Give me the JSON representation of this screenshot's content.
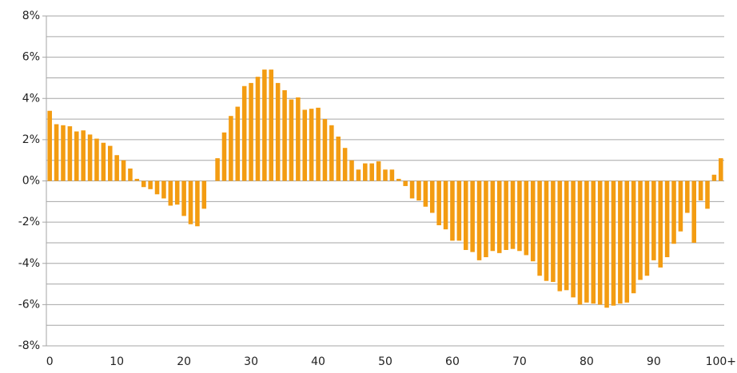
{
  "chart_data": {
    "type": "bar",
    "categories": [
      "0",
      null,
      null,
      null,
      null,
      null,
      null,
      null,
      null,
      null,
      "10",
      null,
      null,
      null,
      null,
      null,
      null,
      null,
      null,
      null,
      "20",
      null,
      null,
      null,
      null,
      null,
      null,
      null,
      null,
      null,
      "30",
      null,
      null,
      null,
      null,
      null,
      null,
      null,
      null,
      null,
      "40",
      null,
      null,
      null,
      null,
      null,
      null,
      null,
      null,
      null,
      "50",
      null,
      null,
      null,
      null,
      null,
      null,
      null,
      null,
      null,
      "60",
      null,
      null,
      null,
      null,
      null,
      null,
      null,
      null,
      null,
      "70",
      null,
      null,
      null,
      null,
      null,
      null,
      null,
      null,
      null,
      "80",
      null,
      null,
      null,
      null,
      null,
      null,
      null,
      null,
      null,
      "90",
      null,
      null,
      null,
      null,
      null,
      null,
      null,
      null,
      null,
      "100+"
    ],
    "values": [
      3.4,
      2.75,
      2.7,
      2.65,
      2.4,
      2.45,
      2.25,
      2.05,
      1.85,
      1.7,
      1.25,
      1.0,
      0.6,
      0.1,
      -0.3,
      -0.4,
      -0.65,
      -0.85,
      -1.2,
      -1.15,
      -1.7,
      -2.1,
      -2.2,
      -1.35,
      0,
      1.1,
      2.35,
      3.15,
      3.6,
      4.6,
      4.75,
      5.05,
      5.4,
      5.4,
      4.75,
      4.4,
      3.95,
      4.05,
      3.45,
      3.5,
      3.55,
      3.0,
      2.7,
      2.15,
      1.6,
      1.0,
      0.55,
      0.85,
      0.85,
      0.95,
      0.55,
      0.55,
      0.1,
      -0.25,
      -0.85,
      -0.95,
      -1.25,
      -1.55,
      -2.15,
      -2.35,
      -2.9,
      -2.9,
      -3.35,
      -3.45,
      -3.85,
      -3.7,
      -3.4,
      -3.5,
      -3.35,
      -3.3,
      -3.4,
      -3.6,
      -3.9,
      -4.6,
      -4.85,
      -4.9,
      -5.35,
      -5.3,
      -5.65,
      -6.0,
      -5.9,
      -5.95,
      -6.0,
      -6.15,
      -6.05,
      -5.95,
      -5.9,
      -5.45,
      -4.8,
      -4.6,
      -3.85,
      -4.2,
      -3.7,
      -3.05,
      -2.45,
      -1.55,
      -3.0,
      -0.95,
      -1.35,
      0.3,
      1.1
    ],
    "color": "#f39c12",
    "ylim": [
      -8,
      8
    ],
    "yticks": [
      {
        "value": -8,
        "label": "-8%"
      },
      {
        "value": -6,
        "label": "-6%"
      },
      {
        "value": -4,
        "label": "-4%"
      },
      {
        "value": -2,
        "label": "-2%"
      },
      {
        "value": 0,
        "label": "0%"
      },
      {
        "value": 2,
        "label": "2%"
      },
      {
        "value": 4,
        "label": "4%"
      },
      {
        "value": 6,
        "label": "6%"
      },
      {
        "value": 8,
        "label": "8%"
      }
    ],
    "minor_yticks": [
      -7,
      -5,
      -3,
      -1,
      1,
      3,
      5,
      7
    ],
    "grid": true
  }
}
